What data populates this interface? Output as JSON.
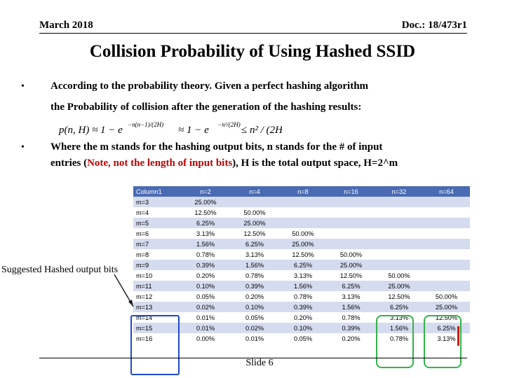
{
  "header": {
    "left": "March 2018",
    "right": "Doc.: 18/473r1"
  },
  "title": "Collision Probability of Using Hashed SSID",
  "bullets": [
    {
      "marker": "•",
      "line1": "According to the probability theory. Given a perfect hashing algorithm",
      "line2": "the Probability of  collision after the generation of the hashing results:"
    },
    {
      "marker": "•",
      "line1": "Where the m stands for the hashing output bits, n stands for the # of input",
      "line2_pre": "entries (",
      "line2_red": "Note, not the length of input bits",
      "line2_post": "), H is the total output space, H=2^m"
    }
  ],
  "formula": {
    "lhs": "p(n, H) ≈ 1 − e",
    "exp1": "−n(n−1)/(2H)",
    "mid": "≈ 1 − e",
    "exp2": "−n²/(2H)",
    "rhs": "≤ n² / (2H)"
  },
  "table": {
    "columns": [
      "Column1",
      "n=2",
      "n=4",
      "n=8",
      "n=16",
      "n=32",
      "n=64"
    ],
    "rows": [
      [
        "m=3",
        "25.00%",
        "",
        "",
        "",
        "",
        ""
      ],
      [
        "m=4",
        "12.50%",
        "50.00%",
        "",
        "",
        "",
        ""
      ],
      [
        "m=5",
        "6.25%",
        "25.00%",
        "",
        "",
        "",
        ""
      ],
      [
        "m=6",
        "3.13%",
        "12.50%",
        "50.00%",
        "",
        "",
        ""
      ],
      [
        "m=7",
        "1.56%",
        "6.25%",
        "25.00%",
        "",
        "",
        ""
      ],
      [
        "m=8",
        "0.78%",
        "3.13%",
        "12.50%",
        "50.00%",
        "",
        ""
      ],
      [
        "m=9",
        "0.39%",
        "1.56%",
        "6.25%",
        "25.00%",
        "",
        ""
      ],
      [
        "m=10",
        "0.20%",
        "0.78%",
        "3.13%",
        "12.50%",
        "50.00%",
        ""
      ],
      [
        "m=11",
        "0.10%",
        "0.39%",
        "1.56%",
        "6.25%",
        "25.00%",
        ""
      ],
      [
        "m=12",
        "0.05%",
        "0.20%",
        "0.78%",
        "3.13%",
        "12.50%",
        "50.00%"
      ],
      [
        "m=13",
        "0.02%",
        "0.10%",
        "0.39%",
        "1.56%",
        "6.25%",
        "25.00%"
      ],
      [
        "m=14",
        "0.01%",
        "0.05%",
        "0.20%",
        "0.78%",
        "3.13%",
        "12.50%"
      ],
      [
        "m=15",
        "0.01%",
        "0.02%",
        "0.10%",
        "0.39%",
        "1.56%",
        "6.25%"
      ],
      [
        "m=16",
        "0.00%",
        "0.01%",
        "0.05%",
        "0.20%",
        "0.78%",
        "3.13%"
      ]
    ]
  },
  "annotation": "Suggested Hashed output bits",
  "footer": "Slide 6",
  "colors": {
    "table_header": "#4a6bb3",
    "table_band": "#d5dcef",
    "highlight_blue": "#1e49c9",
    "highlight_green": "#35b24a",
    "note_red": "#c00000"
  }
}
